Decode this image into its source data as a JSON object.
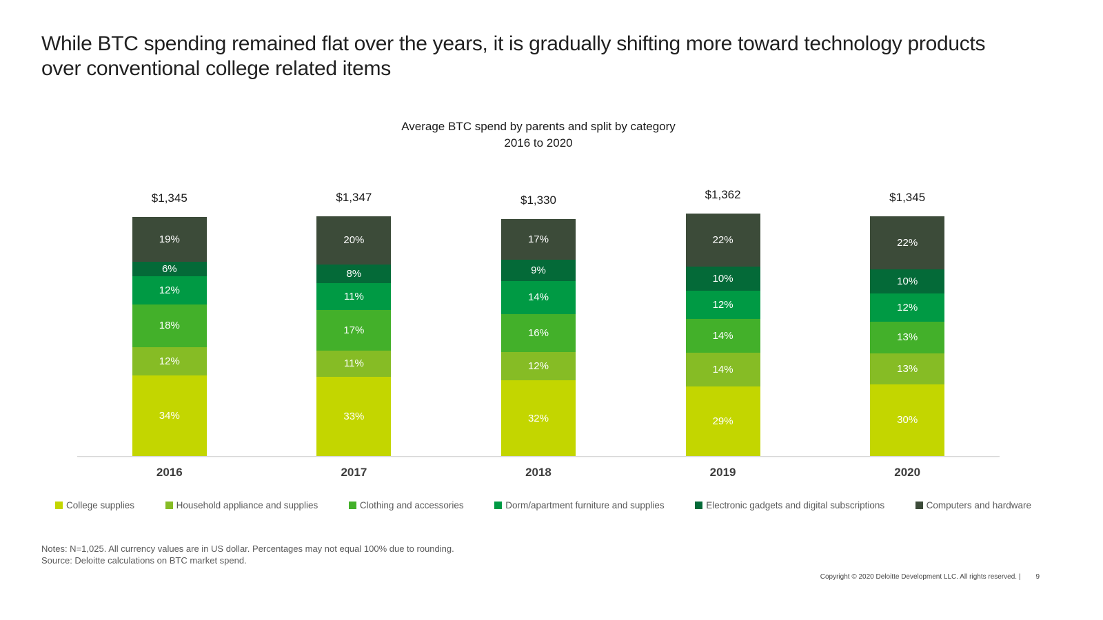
{
  "slide": {
    "title": "While BTC spending remained flat over the years, it is gradually shifting more toward technology products over conventional college related items",
    "notes_line1": "Notes: N=1,025. All currency values are in US dollar. Percentages may not equal 100% due to rounding.",
    "notes_line2": "Source: Deloitte calculations on BTC market spend.",
    "footer": {
      "copyright": "Copyright © 2020 Deloitte Development LLC. All rights reserved.  |",
      "page_number": "9"
    }
  },
  "chart_data": {
    "type": "bar",
    "stacked": true,
    "title_line1": "Average BTC spend by parents and split by category",
    "title_line2": "2016 to 2020",
    "categories": [
      "2016",
      "2017",
      "2018",
      "2019",
      "2020"
    ],
    "totals_display": [
      "$1,345",
      "$1,347",
      "$1,330",
      "$1,362",
      "$1,345"
    ],
    "totals_numeric": [
      1345,
      1347,
      1330,
      1362,
      1345
    ],
    "value_suffix": "%",
    "series": [
      {
        "name": "College supplies",
        "color": "#C3D600",
        "values": [
          34,
          33,
          32,
          29,
          30
        ]
      },
      {
        "name": "Household appliance and supplies",
        "color": "#86BC25",
        "values": [
          12,
          11,
          12,
          14,
          13
        ]
      },
      {
        "name": "Clothing and accessories",
        "color": "#43B02A",
        "values": [
          18,
          17,
          16,
          14,
          13
        ]
      },
      {
        "name": "Dorm/apartment furniture and supplies",
        "color": "#009A44",
        "values": [
          12,
          11,
          14,
          12,
          12
        ]
      },
      {
        "name": "Electronic gadgets and digital subscriptions",
        "color": "#046A38",
        "values": [
          6,
          8,
          9,
          10,
          10
        ]
      },
      {
        "name": "Computers and hardware",
        "color": "#3C4B39",
        "values": [
          19,
          20,
          17,
          22,
          22
        ]
      }
    ],
    "legend_position": "bottom",
    "grid": false,
    "axis_line_color": "#d6d6d6"
  }
}
